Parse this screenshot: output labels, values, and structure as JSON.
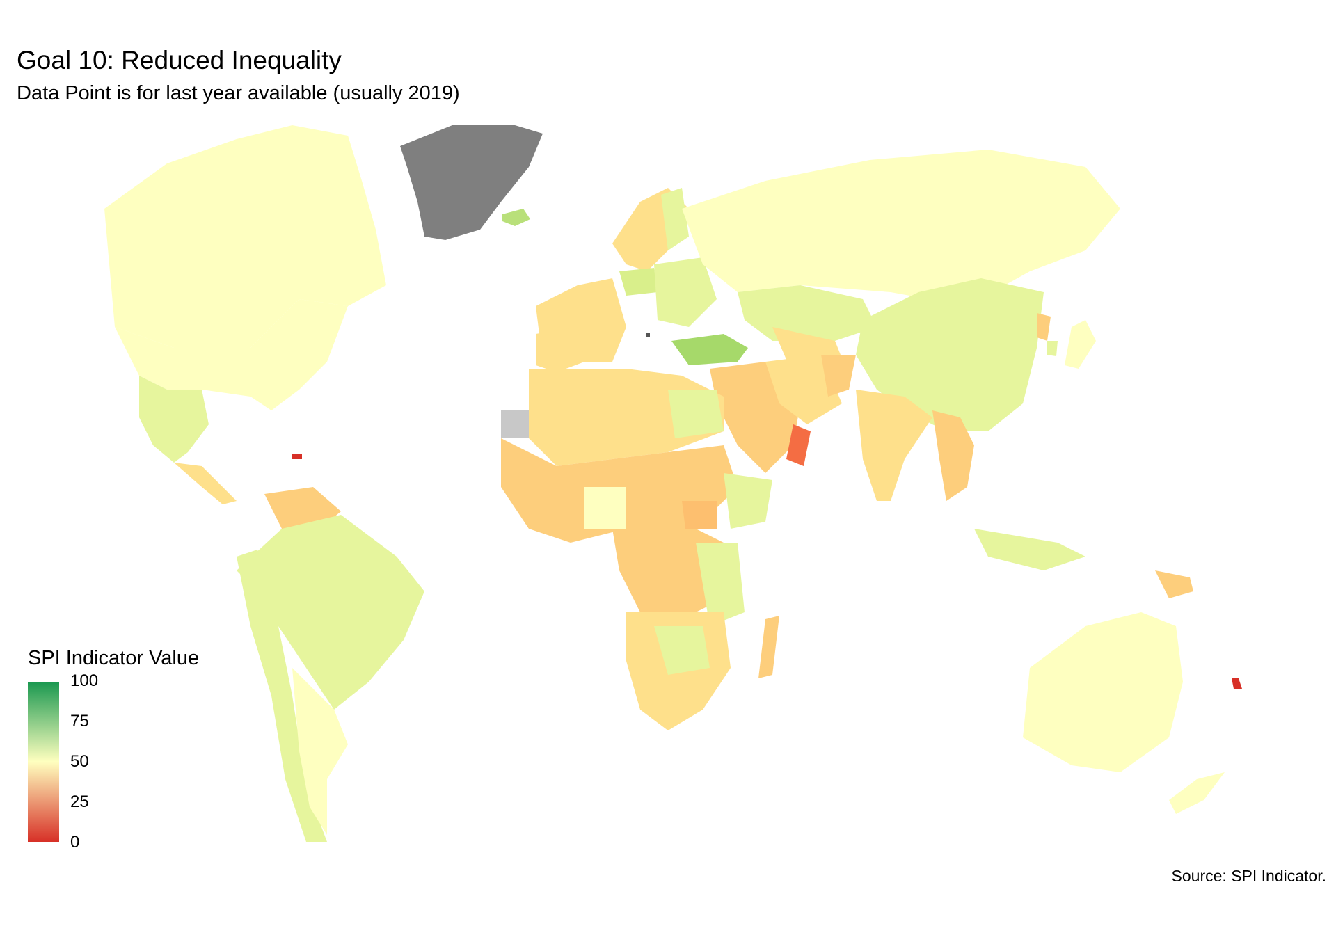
{
  "title": "Goal 10: Reduced Inequality",
  "subtitle": "Data Point is for last year available (usually 2019)",
  "legend": {
    "title": "SPI Indicator Value",
    "ticks": [
      "100",
      "75",
      "50",
      "25",
      "0"
    ],
    "range": [
      0,
      100
    ],
    "colors": {
      "low": "#d73027",
      "mid": "#ffffbf",
      "high": "#1a9850"
    },
    "missing_color": "#c8c8c8",
    "no_data_color": "#7f7f7f"
  },
  "source": "Source: SPI Indicator."
}
